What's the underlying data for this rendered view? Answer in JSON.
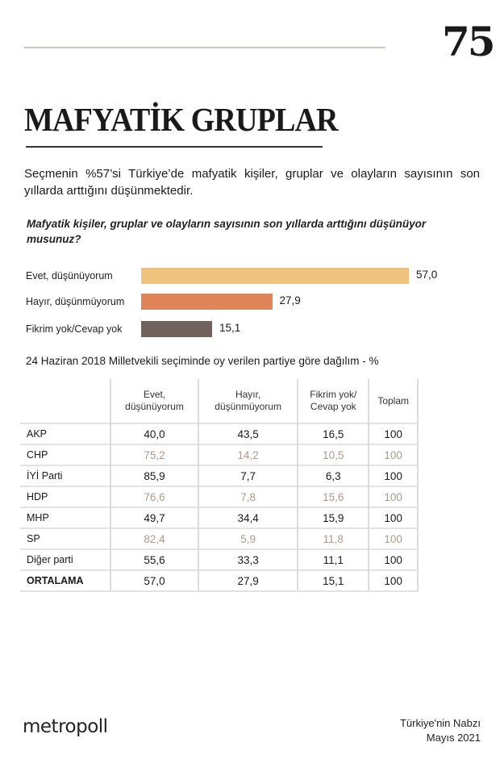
{
  "page_number": "75",
  "title": "MAFYATİK GRUPLAR",
  "lead": "Seçmenin %57’si Türkiye’de mafyatik kişiler, gruplar ve olayların sayısının son yıllarda arttığını düşünmektedir.",
  "question": "Mafyatik kişiler, gruplar ve olayların sayısının son yıllarda arttığını düşünüyor musunuz?",
  "chart_data": {
    "type": "bar",
    "orientation": "horizontal",
    "categories": [
      "Evet, düşünüyorum",
      "Hayır, düşünmüyorum",
      "Fikrim yok/Cevap yok"
    ],
    "values": [
      57.0,
      27.9,
      15.1
    ],
    "value_labels": [
      "57,0",
      "27,9",
      "15,1"
    ],
    "colors": [
      "#efc27d",
      "#e0855a",
      "#6f625c"
    ]
  },
  "table": {
    "subtitle": "24 Haziran 2018 Milletvekili seçiminde oy verilen partiye göre dağılım - %",
    "headers": [
      "",
      "Evet,\ndüşünüyorum",
      "Hayır,\ndüşünmüyorum",
      "Fikrim yok/\nCevap yok",
      "Toplam"
    ],
    "rows": [
      [
        "AKP",
        "40,0",
        "43,5",
        "16,5",
        "100"
      ],
      [
        "CHP",
        "75,2",
        "14,2",
        "10,5",
        "100"
      ],
      [
        "İYİ Parti",
        "85,9",
        "7,7",
        "6,3",
        "100"
      ],
      [
        "HDP",
        "76,6",
        "7,8",
        "15,6",
        "100"
      ],
      [
        "MHP",
        "49,7",
        "34,4",
        "15,9",
        "100"
      ],
      [
        "SP",
        "82,4",
        "5,9",
        "11,8",
        "100"
      ],
      [
        "Diğer parti",
        "55,6",
        "33,3",
        "11,1",
        "100"
      ],
      [
        "ORTALAMA",
        "57,0",
        "27,9",
        "15,1",
        "100"
      ]
    ]
  },
  "footer": {
    "logo": "metropoll",
    "publication": "Türkiye'nin Nabzı",
    "date": "Mayıs 2021"
  }
}
